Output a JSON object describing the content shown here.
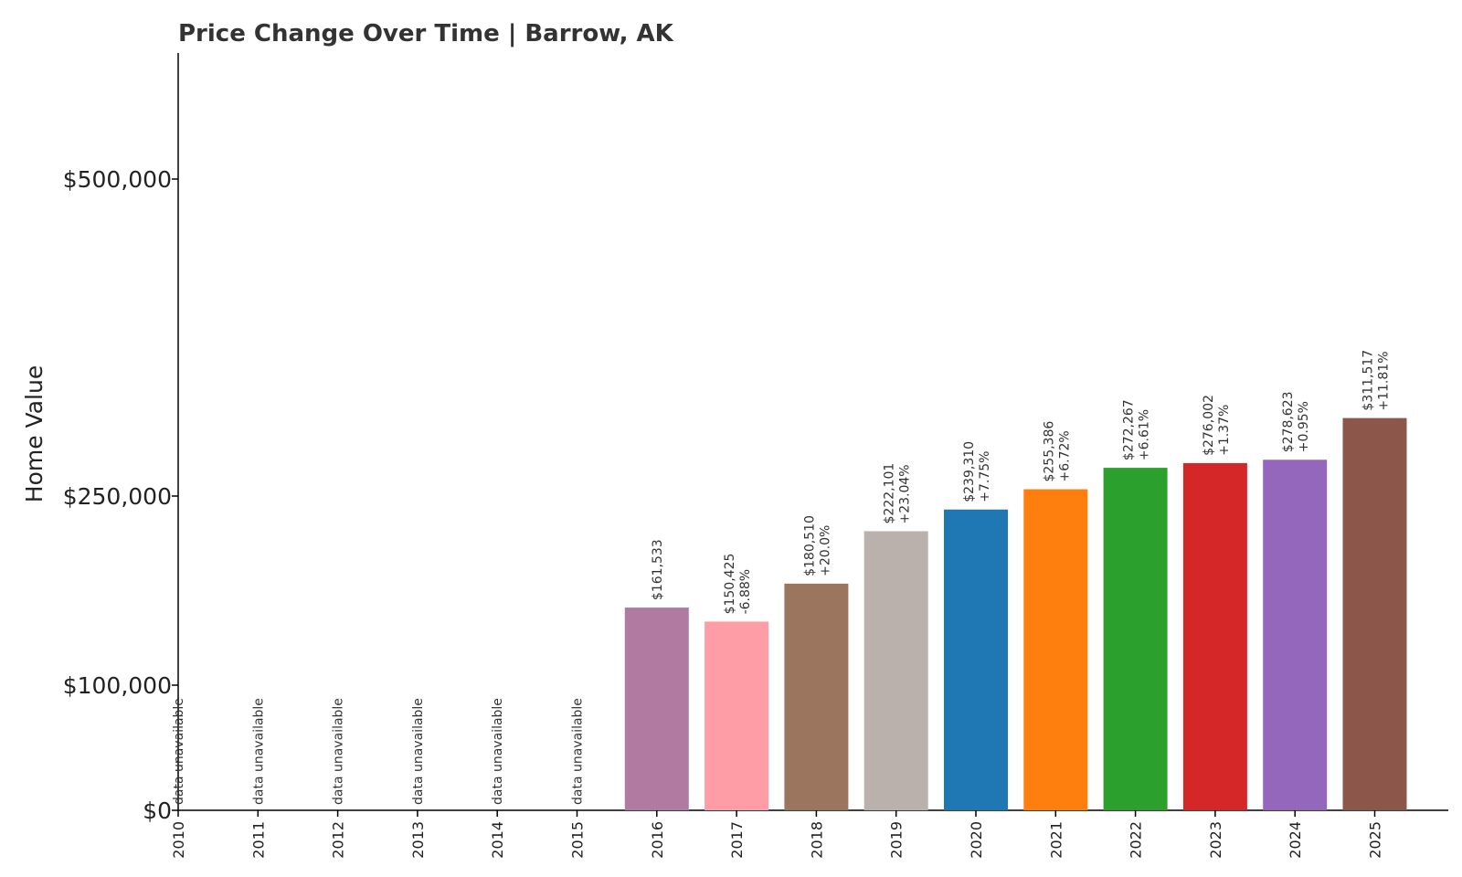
{
  "chart_data": {
    "type": "bar",
    "title": "Price Change Over Time | Barrow, AK",
    "xlabel": "",
    "ylabel": "Home Value",
    "ylim": [
      0,
      600000
    ],
    "yticks": [
      0,
      100000,
      250000,
      500000
    ],
    "ytick_labels": [
      "$0",
      "$100,000",
      "$250,000",
      "$500,000"
    ],
    "axis_scale": "piecewise",
    "grid": false,
    "legend": "none",
    "unavailable_label": "data unavailable",
    "categories": [
      "2010",
      "2011",
      "2012",
      "2013",
      "2014",
      "2015",
      "2016",
      "2017",
      "2018",
      "2019",
      "2020",
      "2021",
      "2022",
      "2023",
      "2024",
      "2025"
    ],
    "values": [
      null,
      null,
      null,
      null,
      null,
      null,
      161533,
      150425,
      180510,
      222101,
      239310,
      255386,
      272267,
      276002,
      278623,
      311517
    ],
    "value_labels": [
      "",
      "",
      "",
      "",
      "",
      "",
      "$161,533",
      "$150,425",
      "$180,510",
      "$222,101",
      "$239,310",
      "$255,386",
      "$272,267",
      "$276,002",
      "$278,623",
      "$311,517"
    ],
    "change_labels": [
      "",
      "",
      "",
      "",
      "",
      "",
      "",
      "-6.88%",
      "+20.0%",
      "+23.04%",
      "+7.75%",
      "+6.72%",
      "+6.61%",
      "+1.37%",
      "+0.95%",
      "+11.81%"
    ],
    "colors": [
      "#b07aa1",
      "#b07aa1",
      "#b07aa1",
      "#b07aa1",
      "#b07aa1",
      "#b07aa1",
      "#b07aa1",
      "#ff9da7",
      "#9c755f",
      "#bab0ac",
      "#1f77b4",
      "#ff7f0e",
      "#2ca02c",
      "#d62728",
      "#9467bd",
      "#8c564b"
    ]
  }
}
